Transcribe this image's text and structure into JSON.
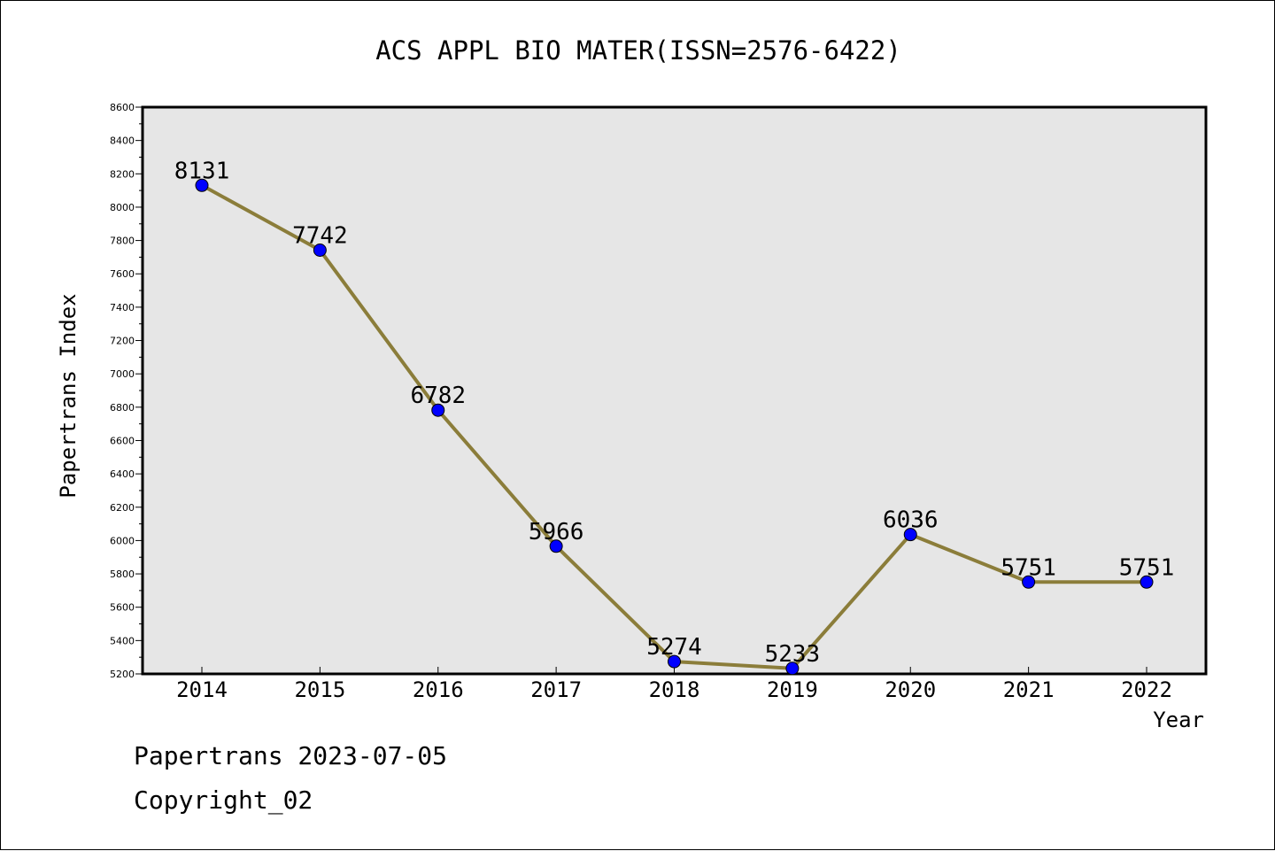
{
  "chart_data": {
    "type": "line",
    "title": "ACS APPL BIO MATER(ISSN=2576-6422)",
    "xlabel": "Year",
    "ylabel": "Papertrans Index",
    "categories": [
      "2014",
      "2015",
      "2016",
      "2017",
      "2018",
      "2019",
      "2020",
      "2021",
      "2022"
    ],
    "series": [
      {
        "values": [
          8131,
          7742,
          6782,
          5966,
          5274,
          5233,
          6036,
          5751,
          5751
        ]
      }
    ],
    "data_labels": [
      "8131",
      "7742",
      "6782",
      "5966",
      "5274",
      "5233",
      "6036",
      "5751",
      "5751"
    ],
    "ylim": [
      5200,
      8600
    ],
    "yticks": [
      5200,
      5400,
      5600,
      5800,
      6000,
      6200,
      6400,
      6600,
      6800,
      7000,
      7200,
      7400,
      7600,
      7800,
      8000,
      8200,
      8400,
      8600
    ],
    "grid": false,
    "colors": {
      "line": "#8B7D3A",
      "marker": "#0000FF",
      "plot_background": "#E6E6E6"
    }
  },
  "footer": {
    "date_line": "Papertrans 2023-07-05",
    "copyright_line": "Copyright_02"
  }
}
